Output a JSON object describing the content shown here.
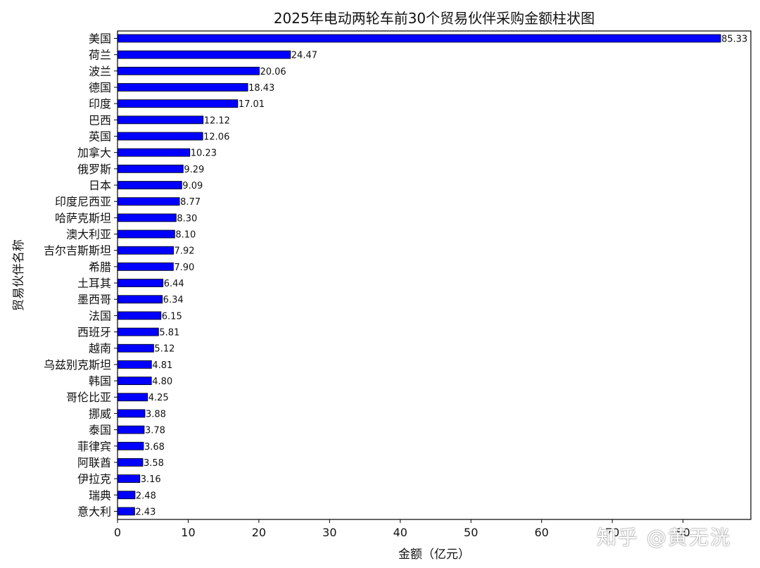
{
  "watermark": "知乎 @黄无洸",
  "chart_data": {
    "type": "bar",
    "orientation": "horizontal",
    "title": "2025年电动两轮车前30个贸易伙伴采购金额柱状图",
    "xlabel": "金额（亿元）",
    "ylabel": "贸易伙伴名称",
    "xlim": [
      0,
      89.6
    ],
    "xticks": [
      0,
      10,
      20,
      30,
      40,
      50,
      60,
      70,
      80
    ],
    "bar_color": "#0000ff",
    "bar_edge_color": "#000000",
    "grid": false,
    "categories": [
      "美国",
      "荷兰",
      "波兰",
      "德国",
      "印度",
      "巴西",
      "英国",
      "加拿大",
      "俄罗斯",
      "日本",
      "印度尼西亚",
      "哈萨克斯坦",
      "澳大利亚",
      "吉尔吉斯斯坦",
      "希腊",
      "土耳其",
      "墨西哥",
      "法国",
      "西班牙",
      "越南",
      "乌兹别克斯坦",
      "韩国",
      "哥伦比亚",
      "挪威",
      "泰国",
      "菲律宾",
      "阿联酋",
      "伊拉克",
      "瑞典",
      "意大利"
    ],
    "values": [
      85.33,
      24.47,
      20.06,
      18.43,
      17.01,
      12.12,
      12.06,
      10.23,
      9.29,
      9.09,
      8.77,
      8.3,
      8.1,
      7.92,
      7.9,
      6.44,
      6.34,
      6.15,
      5.81,
      5.12,
      4.81,
      4.8,
      4.25,
      3.88,
      3.78,
      3.68,
      3.58,
      3.16,
      2.48,
      2.43
    ],
    "value_labels": [
      "85.33",
      "24.47",
      "20.06",
      "18.43",
      "17.01",
      "12.12",
      "12.06",
      "10.23",
      "9.29",
      "9.09",
      "8.77",
      "8.30",
      "8.10",
      "7.92",
      "7.90",
      "6.44",
      "6.34",
      "6.15",
      "5.81",
      "5.12",
      "4.81",
      "4.80",
      "4.25",
      "3.88",
      "3.78",
      "3.68",
      "3.58",
      "3.16",
      "2.48",
      "2.43"
    ]
  }
}
